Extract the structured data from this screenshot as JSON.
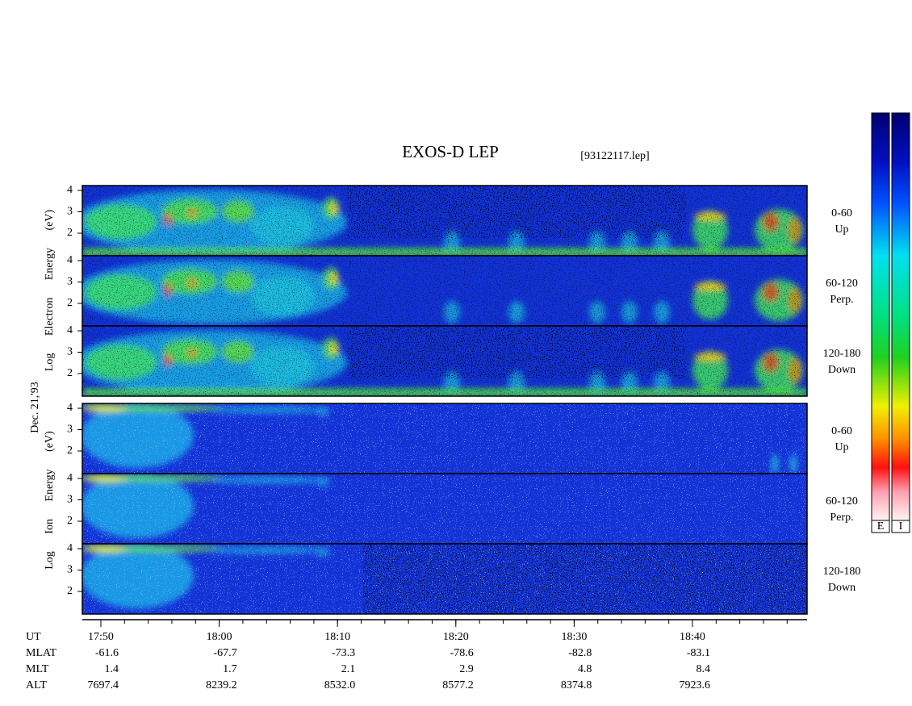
{
  "title": "EXOS-D LEP",
  "file": "[93122117.lep]",
  "date": "Dec. 21,'93",
  "yticks": [
    2,
    3,
    4
  ],
  "electron": {
    "axis_label": "Log Electron Energy (eV)",
    "panels": [
      {
        "angle": "0-60",
        "direction": "Up"
      },
      {
        "angle": "60-120",
        "direction": "Perp."
      },
      {
        "angle": "120-180",
        "direction": "Down"
      }
    ]
  },
  "ion": {
    "axis_label": "Log Ion Energy (eV)",
    "panels": [
      {
        "angle": "0-60",
        "direction": "Up"
      },
      {
        "angle": "60-120",
        "direction": "Perp."
      },
      {
        "angle": "120-180",
        "direction": "Down"
      }
    ]
  },
  "time_axis": {
    "rows": [
      {
        "name": "UT",
        "values": [
          "17:50",
          "18:00",
          "18:10",
          "18:20",
          "18:30",
          "18:40"
        ]
      },
      {
        "name": "MLAT",
        "values": [
          "-61.6",
          "-67.7",
          "-73.3",
          "-78.6",
          "-82.8",
          "-83.1"
        ]
      },
      {
        "name": "MLT",
        "values": [
          "1.4",
          "1.7",
          "2.1",
          "2.9",
          "4.8",
          "8.4"
        ]
      },
      {
        "name": "ALT",
        "values": [
          "7697.4",
          "8239.2",
          "8532.0",
          "8577.2",
          "8374.8",
          "7923.6"
        ]
      }
    ]
  },
  "colorbars": [
    "E",
    "I"
  ]
}
